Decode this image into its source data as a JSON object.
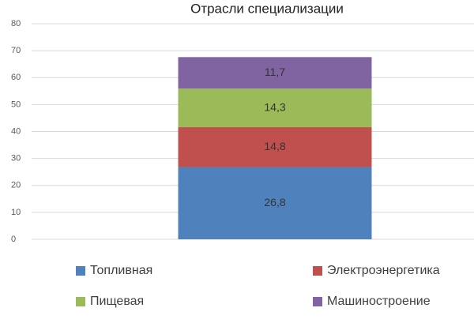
{
  "chart_data": {
    "type": "stacked_bar",
    "title": "Отрасли специализации",
    "categories": [
      null
    ],
    "series": [
      {
        "name": "Топливная",
        "color": "#4f81bd",
        "values": [
          26.8
        ],
        "value_labels": [
          "26,8"
        ]
      },
      {
        "name": "Электроэнергетика",
        "color": "#c0504d",
        "values": [
          14.8
        ],
        "value_labels": [
          "14,8"
        ]
      },
      {
        "name": "Пищевая",
        "color": "#9bbb59",
        "values": [
          14.3
        ],
        "value_labels": [
          "14,3"
        ]
      },
      {
        "name": "Машиностроение",
        "color": "#8064a2",
        "values": [
          11.7
        ],
        "value_labels": [
          "11,7"
        ]
      }
    ],
    "ylim": [
      0,
      80
    ],
    "yticks": [
      0,
      10,
      20,
      30,
      40,
      50,
      60,
      70,
      80
    ],
    "grid": true,
    "legend": "bottom"
  }
}
